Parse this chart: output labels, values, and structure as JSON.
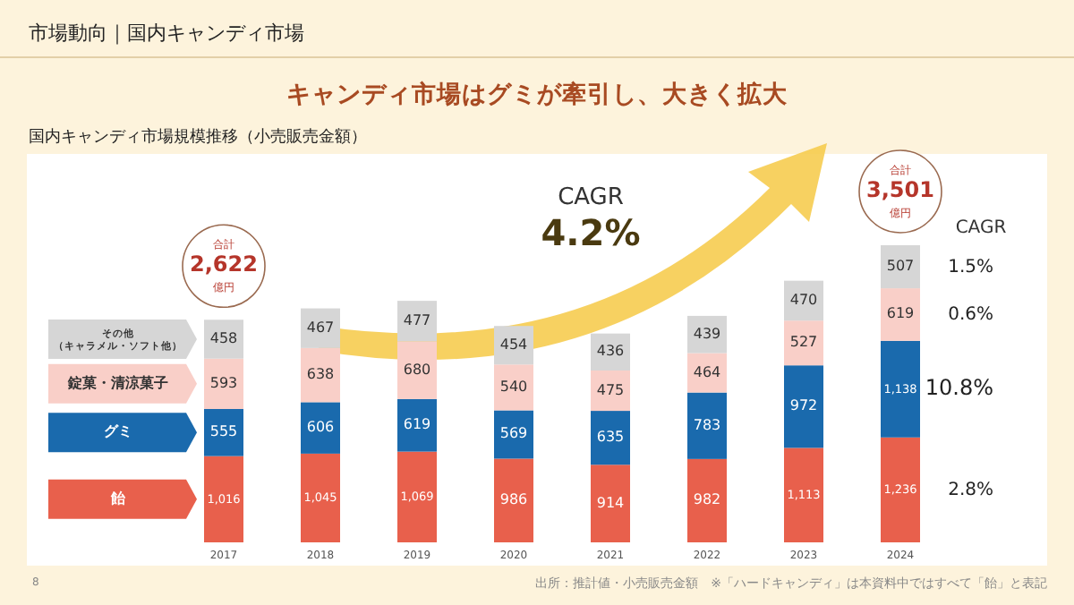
{
  "chart_data": {
    "type": "bar",
    "stacked": true,
    "title": "キャンディ市場はグミが牽引し、大きく拡大",
    "subtitle": "国内キャンディ市場規模推移（小売販売金額）",
    "categories": [
      "2017",
      "2018",
      "2019",
      "2020",
      "2021",
      "2022",
      "2023",
      "2024"
    ],
    "series": [
      {
        "name": "飴",
        "color": "#e8604c",
        "values": [
          1016,
          1045,
          1069,
          986,
          914,
          982,
          1113,
          1236
        ],
        "value_labels": [
          "1,016",
          "1,045",
          "1,069",
          "986",
          "914",
          "982",
          "1,113",
          "1,236"
        ]
      },
      {
        "name": "グミ",
        "color": "#1a6aad",
        "values": [
          555,
          606,
          619,
          569,
          635,
          783,
          972,
          1138
        ],
        "value_labels": [
          "555",
          "606",
          "619",
          "569",
          "635",
          "783",
          "972",
          "1,138"
        ]
      },
      {
        "name": "錠菓・清涼菓子",
        "color": "#f9cfc8",
        "values": [
          593,
          638,
          680,
          540,
          475,
          464,
          527,
          619
        ],
        "value_labels": [
          "593",
          "638",
          "680",
          "540",
          "475",
          "464",
          "527",
          "619"
        ]
      },
      {
        "name": "その他（キャラメル・ソフト他）",
        "color": "#d6d6d6",
        "values": [
          458,
          467,
          477,
          454,
          436,
          439,
          470,
          507
        ],
        "value_labels": [
          "458",
          "467",
          "477",
          "454",
          "436",
          "439",
          "470",
          "507"
        ]
      }
    ],
    "totals": [
      "合計\n2,622\n億円",
      null,
      null,
      null,
      null,
      null,
      null,
      "合計\n3,501\n億円"
    ],
    "legend": "left",
    "annotations": [
      "市場動向｜国内キャンディ市場",
      "CAGR\n4.2%",
      "CAGR",
      "2.8%",
      "10.8%",
      "0.6%",
      "1.5%",
      "出所：推計値・小売販売金額　※「ハードキャンディ」は本資料中ではすべて「飴」と表記",
      "8"
    ]
  }
}
